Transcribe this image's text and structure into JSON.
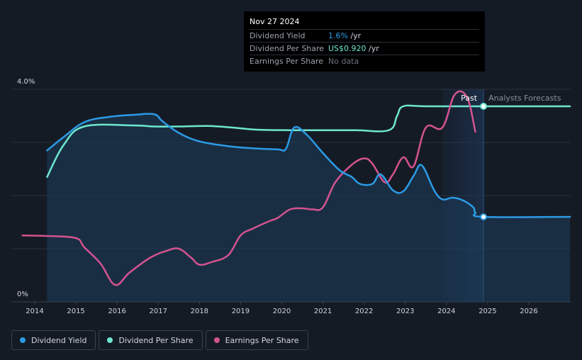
{
  "tooltip": {
    "date": "Nov 27 2024",
    "rows": [
      {
        "label": "Dividend Yield",
        "value": "1.6%",
        "unit": " /yr",
        "color": "#2b9be6"
      },
      {
        "label": "Dividend Per Share",
        "value": "US$0.920",
        "unit": " /yr",
        "color": "#6ee7cf"
      },
      {
        "label": "Earnings Per Share",
        "value": "No data",
        "unit": "",
        "color": "#6b717c"
      }
    ]
  },
  "annotations": {
    "past": "Past",
    "forecast": "Analysts Forecasts"
  },
  "legend": [
    {
      "label": "Dividend Yield",
      "color": "#2b9be6"
    },
    {
      "label": "Dividend Per Share",
      "color": "#6ee7cf"
    },
    {
      "label": "Earnings Per Share",
      "color": "#d4538f"
    }
  ],
  "chart_data": {
    "type": "line",
    "y_ticks": [
      "4.0%",
      "0%"
    ],
    "ylim": [
      0,
      4.0
    ],
    "xlim": [
      2013.7,
      2027.0
    ],
    "x_ticks": [
      "2014",
      "2015",
      "2016",
      "2017",
      "2018",
      "2019",
      "2020",
      "2021",
      "2022",
      "2023",
      "2024",
      "2025",
      "2026"
    ],
    "today": 2024.9,
    "past_shade_start": 2023.9,
    "series": [
      {
        "name": "Dividend Yield",
        "color": "#2b9be6",
        "x": [
          2014.3,
          2014.7,
          2015.2,
          2015.8,
          2016.4,
          2016.9,
          2017.1,
          2017.5,
          2018.0,
          2018.7,
          2019.3,
          2019.9,
          2020.1,
          2020.3,
          2020.6,
          2021.0,
          2021.4,
          2021.7,
          2021.9,
          2022.2,
          2022.4,
          2022.7,
          2022.95,
          2023.2,
          2023.4,
          2023.7,
          2023.9,
          2024.15,
          2024.4,
          2024.65,
          2024.7,
          2024.9,
          2027.0
        ],
        "y": [
          2.85,
          3.1,
          3.38,
          3.48,
          3.52,
          3.53,
          3.4,
          3.18,
          3.02,
          2.93,
          2.89,
          2.87,
          2.88,
          3.28,
          3.15,
          2.8,
          2.48,
          2.35,
          2.22,
          2.22,
          2.4,
          2.1,
          2.08,
          2.37,
          2.57,
          2.1,
          1.93,
          1.96,
          1.91,
          1.78,
          1.68,
          1.6,
          1.6
        ]
      },
      {
        "name": "Dividend Per Share",
        "color": "#6ee7cf",
        "x": [
          2014.3,
          2014.7,
          2015.2,
          2016.4,
          2016.9,
          2017.5,
          2018.2,
          2018.8,
          2019.4,
          2020.2,
          2021.0,
          2021.8,
          2022.6,
          2022.8,
          2022.95,
          2023.5,
          2024.9,
          2027.0
        ],
        "y": [
          2.35,
          2.95,
          3.3,
          3.32,
          3.3,
          3.3,
          3.31,
          3.28,
          3.24,
          3.23,
          3.23,
          3.23,
          3.23,
          3.5,
          3.68,
          3.68,
          3.68,
          3.68
        ]
      },
      {
        "name": "Earnings Per Share",
        "color": "#d4538f",
        "x": [
          2013.7,
          2014.3,
          2015.0,
          2015.2,
          2015.6,
          2015.95,
          2016.3,
          2016.8,
          2017.2,
          2017.5,
          2017.8,
          2018.0,
          2018.3,
          2018.7,
          2019.0,
          2019.3,
          2019.7,
          2019.9,
          2020.2,
          2020.5,
          2020.75,
          2021.0,
          2021.3,
          2021.7,
          2022.0,
          2022.2,
          2022.5,
          2022.7,
          2022.95,
          2023.2,
          2023.5,
          2023.9,
          2024.2,
          2024.5,
          2024.7
        ],
        "y": [
          1.25,
          1.24,
          1.2,
          1.03,
          0.72,
          0.32,
          0.55,
          0.83,
          0.96,
          1.0,
          0.83,
          0.7,
          0.75,
          0.88,
          1.25,
          1.38,
          1.52,
          1.58,
          1.74,
          1.76,
          1.74,
          1.78,
          2.25,
          2.58,
          2.7,
          2.6,
          2.25,
          2.4,
          2.72,
          2.55,
          3.28,
          3.28,
          3.9,
          3.85,
          3.2
        ]
      }
    ],
    "markers": [
      {
        "series": "Dividend Per Share",
        "x": 2024.9,
        "y": 3.68
      },
      {
        "series": "Dividend Yield",
        "x": 2024.9,
        "y": 1.6
      }
    ]
  }
}
